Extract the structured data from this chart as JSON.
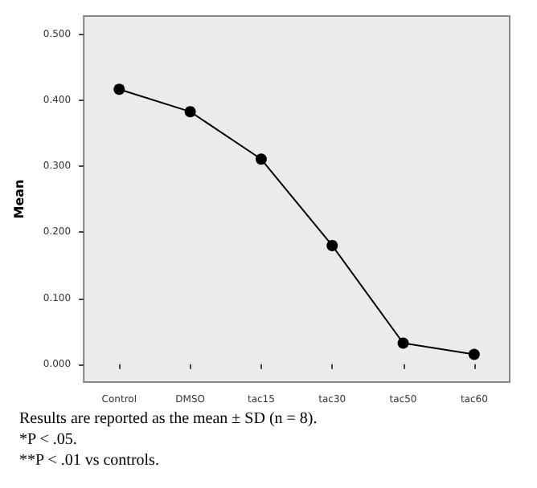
{
  "chart_data": {
    "type": "line",
    "ylabel": "Mean",
    "categories": [
      "Control",
      "DMSO",
      "tac15",
      "tac30",
      "tac50",
      "tac60"
    ],
    "series": [
      {
        "color": "#000000",
        "values": [
          0.417,
          0.383,
          0.311,
          0.18,
          0.032,
          0.015
        ]
      }
    ],
    "ylim": [
      -0.027,
      0.528
    ],
    "yticks": [
      {
        "value": 0,
        "label": "0.000"
      },
      {
        "value": 0.1,
        "label": "0.100"
      },
      {
        "value": 0.2,
        "label": "0.200"
      },
      {
        "value": 0.3,
        "label": "0.300"
      },
      {
        "value": 0.4,
        "label": "0.400"
      },
      {
        "value": 0.5,
        "label": "0.500"
      }
    ],
    "marker": "circle",
    "grid": false,
    "annotations": [
      "Results are reported as the mean ± SD (n = 8).",
      "*P < .05.",
      "**P < .01 vs controls."
    ]
  }
}
